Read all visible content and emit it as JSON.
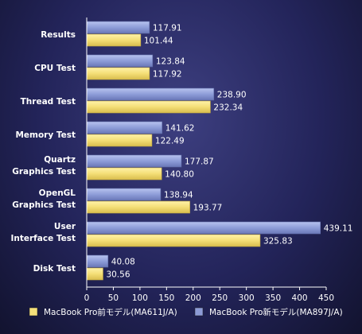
{
  "chart_data": {
    "type": "bar",
    "orientation": "horizontal",
    "title": "",
    "xlabel": "",
    "ylabel": "",
    "categories": [
      [
        "Results"
      ],
      [
        "CPU Test"
      ],
      [
        "Thread Test"
      ],
      [
        "Memory Test"
      ],
      [
        "Quartz",
        "Graphics Test"
      ],
      [
        "OpenGL",
        "Graphics Test"
      ],
      [
        "User",
        "Interface Test"
      ],
      [
        "Disk Test"
      ]
    ],
    "series": [
      {
        "name": "MacBook Pro新モデル(MA897J/A)",
        "color": "#8d9bd6",
        "values": [
          117.91,
          123.84,
          238.9,
          141.62,
          177.87,
          138.94,
          439.11,
          40.08
        ],
        "labels": [
          "117.91",
          "123.84",
          "238.90",
          "141.62",
          "177.87",
          "138.94",
          "439.11",
          "40.08"
        ]
      },
      {
        "name": "MacBook Pro前モデル(MA611J/A)",
        "color": "#f4e07a",
        "values": [
          101.44,
          117.92,
          232.34,
          122.49,
          140.8,
          193.77,
          325.83,
          30.56
        ],
        "labels": [
          "101.44",
          "117.92",
          "232.34",
          "122.49",
          "140.80",
          "193.77",
          "325.83",
          "30.56"
        ]
      }
    ],
    "xlim": [
      0,
      450
    ],
    "xticks": [
      "0",
      "50",
      "100",
      "150",
      "200",
      "250",
      "300",
      "350",
      "400",
      "450"
    ],
    "grid": false,
    "legend": {
      "position": "bottom",
      "order": [
        1,
        0
      ]
    }
  }
}
